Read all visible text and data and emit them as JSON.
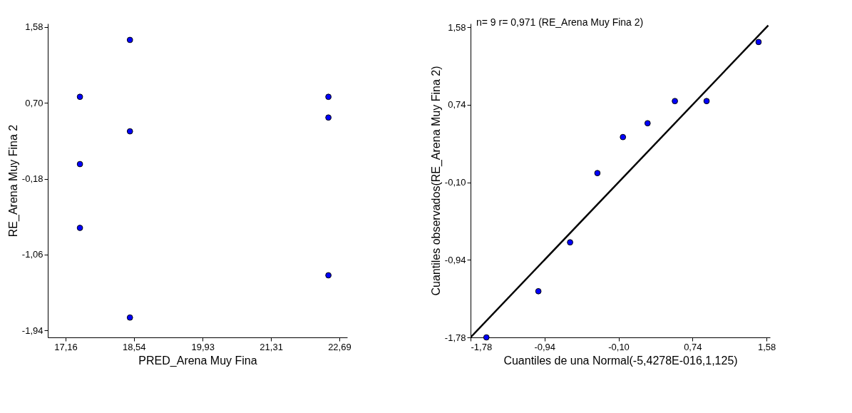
{
  "chart_data": [
    {
      "type": "scatter",
      "xlabel": "PRED_Arena Muy Fina",
      "ylabel": "RE_Arena Muy Fina 2",
      "marker": "circle",
      "grid": false,
      "xlim": [
        16.8,
        22.85
      ],
      "ylim": [
        -2.02,
        1.62
      ],
      "xticks": [
        {
          "value": 17.16,
          "label": "17,16"
        },
        {
          "value": 18.54,
          "label": "18,54"
        },
        {
          "value": 19.93,
          "label": "19,93"
        },
        {
          "value": 21.31,
          "label": "21,31"
        },
        {
          "value": 22.69,
          "label": "22,69"
        }
      ],
      "yticks": [
        {
          "value": -1.94,
          "label": "-1,94"
        },
        {
          "value": -1.06,
          "label": "-1,06"
        },
        {
          "value": -0.18,
          "label": "-0,18"
        },
        {
          "value": 0.7,
          "label": "0,70"
        },
        {
          "value": 1.58,
          "label": "1,58"
        }
      ],
      "series": [
        {
          "color": "#0000ff",
          "x": [
            17.45,
            17.45,
            17.45,
            18.46,
            18.46,
            18.46,
            22.47,
            22.47,
            22.47
          ],
          "values": [
            0.77,
            -0.01,
            -0.75,
            1.43,
            0.37,
            -1.79,
            0.77,
            0.53,
            -1.3
          ]
        }
      ]
    },
    {
      "type": "scatter",
      "xlabel": "Cuantiles de una Normal(-5,4278E-016,1,125)",
      "ylabel": "Cuantiles observados(RE_Arena Muy Fina 2)",
      "marker": "circle",
      "grid": false,
      "annotations": [
        "n= 9 r= 0,971 (RE_Arena Muy Fina 2)"
      ],
      "xlim": [
        -1.78,
        1.62
      ],
      "ylim": [
        -1.78,
        1.62
      ],
      "xticks": [
        {
          "value": -1.78,
          "label": "-1,78"
        },
        {
          "value": -0.94,
          "label": "-0,94"
        },
        {
          "value": -0.1,
          "label": "-0,10"
        },
        {
          "value": 0.74,
          "label": "0,74"
        },
        {
          "value": 1.58,
          "label": "1,58"
        }
      ],
      "yticks": [
        {
          "value": -1.78,
          "label": "-1,78"
        },
        {
          "value": -0.94,
          "label": "-0,94"
        },
        {
          "value": -0.1,
          "label": "-0,10"
        },
        {
          "value": 0.74,
          "label": "0,74"
        },
        {
          "value": 1.58,
          "label": "1,58"
        }
      ],
      "series": [
        {
          "type": "line",
          "marker": "none",
          "color": "#000000",
          "x": [
            -1.78,
            1.6
          ],
          "values": [
            -1.78,
            1.6
          ]
        },
        {
          "color": "#0000ff",
          "x": [
            -1.6,
            -1.01,
            -0.65,
            -0.34,
            -0.05,
            0.23,
            0.54,
            0.9,
            1.49
          ],
          "values": [
            -1.78,
            -1.28,
            -0.75,
            0.0,
            0.39,
            0.54,
            0.78,
            0.78,
            1.42
          ]
        }
      ]
    }
  ]
}
